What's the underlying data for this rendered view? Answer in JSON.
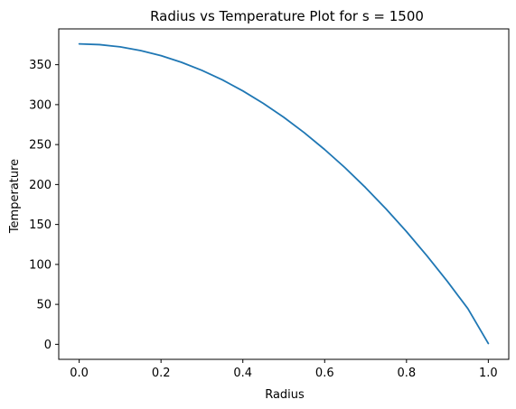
{
  "chart_data": {
    "type": "line",
    "title": "Radius vs Temperature  Plot for s = 1500",
    "xlabel": "Radius",
    "ylabel": "Temperature",
    "xlim": [
      -0.05,
      1.05
    ],
    "ylim": [
      -18.8,
      394.8
    ],
    "x_ticks": [
      0.0,
      0.2,
      0.4,
      0.6,
      0.8,
      1.0
    ],
    "x_tick_labels": [
      "0.0",
      "0.2",
      "0.4",
      "0.6",
      "0.8",
      "1.0"
    ],
    "y_ticks": [
      0,
      50,
      100,
      150,
      200,
      250,
      300,
      350
    ],
    "y_tick_labels": [
      "0",
      "50",
      "100",
      "150",
      "200",
      "250",
      "300",
      "350"
    ],
    "grid": false,
    "series": [
      {
        "color": "#1f77b4",
        "x": [
          0.0,
          0.05,
          0.1,
          0.15,
          0.2,
          0.25,
          0.3,
          0.35,
          0.4,
          0.45,
          0.5,
          0.55,
          0.6,
          0.65,
          0.7,
          0.75,
          0.8,
          0.85,
          0.9,
          0.95,
          1.0
        ],
        "y": [
          376,
          375.1,
          372.3,
          367.7,
          361.3,
          353.0,
          342.9,
          331.0,
          317.2,
          301.6,
          284.2,
          264.9,
          243.8,
          220.9,
          196.1,
          169.5,
          141.1,
          110.8,
          78.7,
          44.7,
          1
        ]
      }
    ]
  }
}
